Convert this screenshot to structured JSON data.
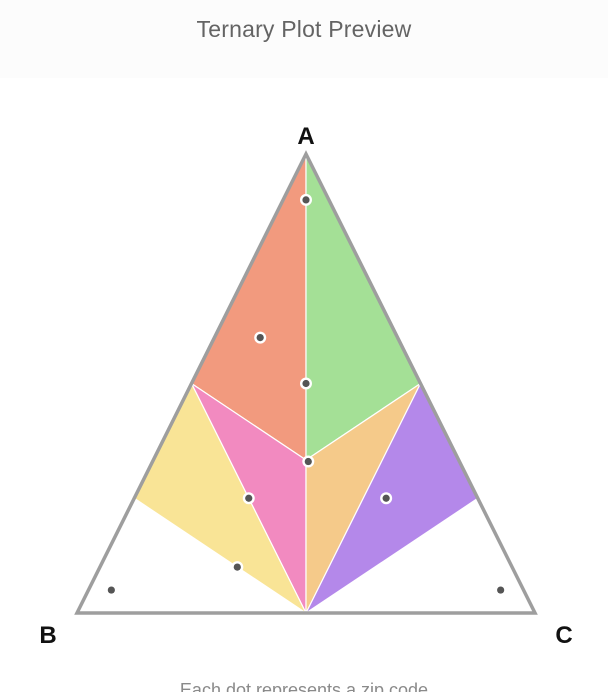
{
  "header": {
    "title": "Ternary Plot Preview"
  },
  "footer": {
    "caption": "Each dot represents a zip code"
  },
  "chart_data": {
    "type": "ternary",
    "vertices": {
      "top": "A",
      "bottom_left": "B",
      "bottom_right": "C"
    },
    "region_colors": {
      "A_B": "#f29a7e",
      "A_C": "#a4e096",
      "B_A": "#f28ac0",
      "C_A": "#f5ca8a",
      "B_only": "#f9e496",
      "C_only": "#b488ea"
    },
    "points": [
      {
        "a": 0.9,
        "b": 0.05,
        "c": 0.05
      },
      {
        "a": 0.6,
        "b": 0.3,
        "c": 0.1
      },
      {
        "a": 0.5,
        "b": 0.25,
        "c": 0.25
      },
      {
        "a": 0.33,
        "b": 0.33,
        "c": 0.34
      },
      {
        "a": 0.25,
        "b": 0.5,
        "c": 0.25
      },
      {
        "a": 0.1,
        "b": 0.6,
        "c": 0.3
      },
      {
        "a": 0.25,
        "b": 0.2,
        "c": 0.55
      },
      {
        "a": 0.05,
        "b": 0.9,
        "c": 0.05
      },
      {
        "a": 0.05,
        "b": 0.05,
        "c": 0.9
      }
    ]
  }
}
